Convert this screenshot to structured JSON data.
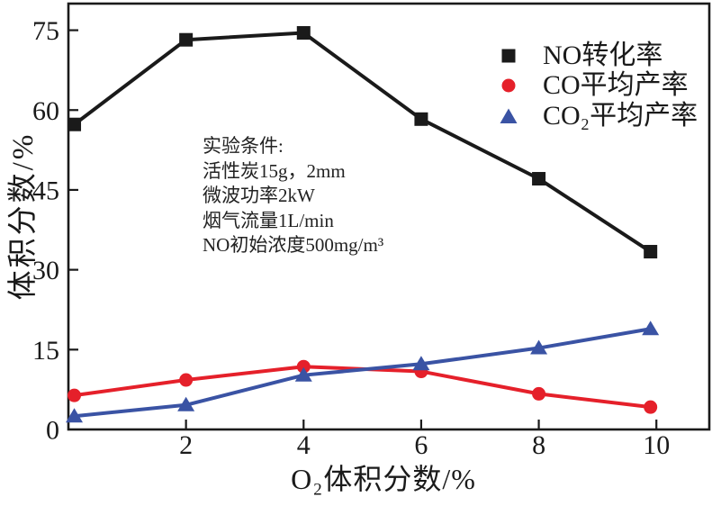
{
  "chart_data": {
    "type": "line",
    "title": "",
    "xlabel": "O₂体积分数/%",
    "ylabel": "体积分数/%",
    "xlim": [
      0,
      10.9
    ],
    "ylim": [
      0,
      80
    ],
    "x_ticks": [
      2,
      4,
      6,
      8,
      10
    ],
    "y_ticks": [
      0,
      15,
      30,
      45,
      60,
      75
    ],
    "grid": false,
    "legend_position": "top-right-inside",
    "axis_color": "#1a1a1a",
    "x": [
      0.1,
      2,
      4,
      6,
      8,
      9.9
    ],
    "series": [
      {
        "name": "NO转化率",
        "marker": "square",
        "color": "#1a1a1a",
        "values": [
          57.3,
          73.2,
          74.5,
          58.3,
          47.1,
          33.4
        ]
      },
      {
        "name": "CO平均产率",
        "marker": "circle",
        "color": "#e5202a",
        "values": [
          6.4,
          9.3,
          11.8,
          10.9,
          6.7,
          4.2
        ]
      },
      {
        "name": "CO₂平均产率",
        "marker": "triangle",
        "color": "#3a53a4",
        "values": [
          2.5,
          4.6,
          10.2,
          12.3,
          15.3,
          18.9
        ]
      }
    ],
    "annotation": {
      "lines": [
        "实验条件:",
        "活性炭15g，2mm",
        "微波功率2kW",
        "烟气流量1L/min",
        "NO初始浓度500mg/m³"
      ]
    }
  }
}
